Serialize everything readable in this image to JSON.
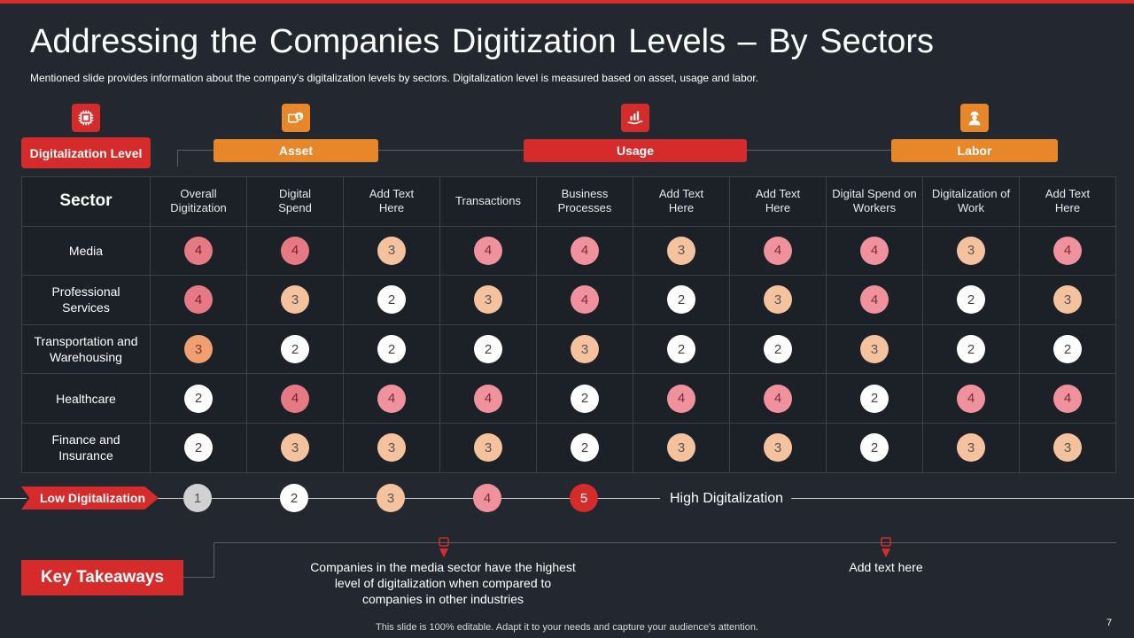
{
  "slide": {
    "title": "Addressing the Companies Digitization Levels – By Sectors",
    "subtitle": "Mentioned slide provides information about the company's digitalization levels by sectors. Digitalization level is measured based on asset, usage and labor.",
    "page_number": "7",
    "footer": "This slide is 100% editable. Adapt it to your needs and capture your audience's attention."
  },
  "categories": {
    "digitalization_level": "Digitalization Level",
    "asset": "Asset",
    "usage": "Usage",
    "labor": "Labor"
  },
  "colors": {
    "red": "#d62b2b",
    "orange": "#e8862a",
    "background": "#232830",
    "cell_bg": "#1c2027"
  },
  "table": {
    "sector_header": "Sector",
    "columns": [
      "Overall Digitization",
      "Digital Spend",
      "Add Text Here",
      "Transactions",
      "Business Processes",
      "Add Text Here",
      "Add Text Here",
      "Digital Spend on Workers",
      "Digitalization of Work",
      "Add Text Here"
    ],
    "rows": [
      {
        "sector": "Media",
        "values": [
          "4",
          "4",
          "3",
          "4",
          "4",
          "3",
          "4",
          "4",
          "3",
          "4"
        ]
      },
      {
        "sector": "Professional Services",
        "values": [
          "4",
          "3",
          "2",
          "3",
          "4",
          "2",
          "3",
          "4",
          "2",
          "3"
        ]
      },
      {
        "sector": "Transportation and Warehousing",
        "values": [
          "3",
          "2",
          "2",
          "2",
          "3",
          "2",
          "2",
          "3",
          "2",
          "2"
        ]
      },
      {
        "sector": "Healthcare",
        "values": [
          "2",
          "4",
          "4",
          "4",
          "2",
          "4",
          "4",
          "2",
          "4",
          "4"
        ]
      },
      {
        "sector": "Finance and Insurance",
        "values": [
          "2",
          "3",
          "3",
          "3",
          "2",
          "3",
          "3",
          "2",
          "3",
          "3"
        ]
      }
    ]
  },
  "scale": {
    "low_label": "Low Digitalization",
    "high_label": "High Digitalization",
    "levels": [
      "1",
      "2",
      "3",
      "4",
      "5"
    ]
  },
  "takeaways": {
    "label": "Key Takeaways",
    "items": [
      "Companies in the media sector have the highest level of digitalization when compared to companies in other industries",
      "Add text here"
    ]
  }
}
